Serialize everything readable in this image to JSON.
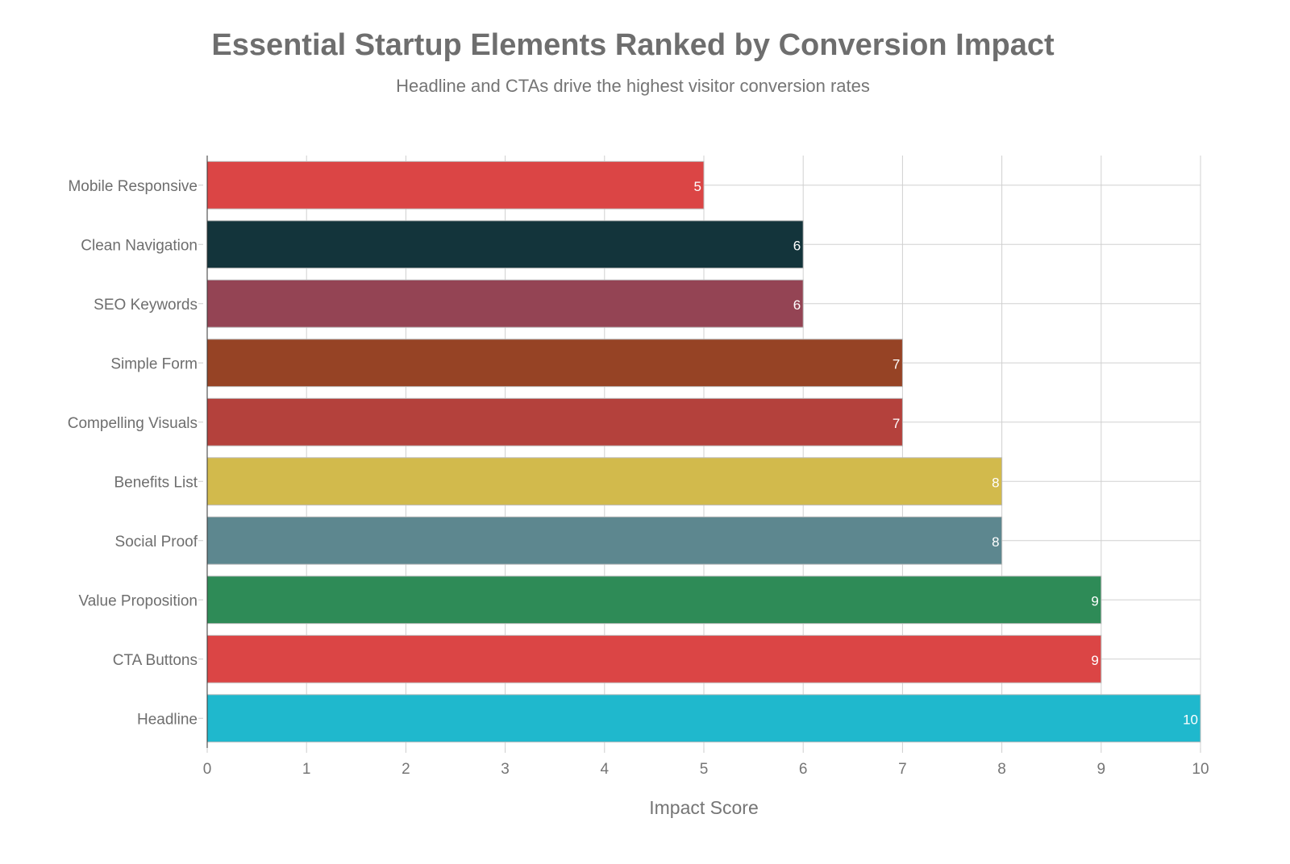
{
  "chart_data": {
    "type": "bar",
    "orientation": "horizontal",
    "title": "Essential Startup Elements Ranked by Conversion Impact",
    "subtitle": "Headline and CTAs drive the highest visitor conversion rates",
    "xlabel": "Impact Score",
    "ylabel": "",
    "xlim": [
      0,
      10
    ],
    "xticks": [
      0,
      1,
      2,
      3,
      4,
      5,
      6,
      7,
      8,
      9,
      10
    ],
    "grid": true,
    "categories": [
      "Mobile Responsive",
      "Clean Navigation",
      "SEO Keywords",
      "Simple Form",
      "Compelling Visuals",
      "Benefits List",
      "Social Proof",
      "Value Proposition",
      "CTA Buttons",
      "Headline"
    ],
    "values": [
      5,
      6,
      6,
      7,
      7,
      8,
      8,
      9,
      9,
      10
    ],
    "colors": [
      "#DB4545",
      "#13343B",
      "#944454",
      "#964325",
      "#B4413C",
      "#D2BA4C",
      "#5D878F",
      "#2E8B57",
      "#DB4545",
      "#1FB8CD"
    ],
    "data_labels": true
  }
}
